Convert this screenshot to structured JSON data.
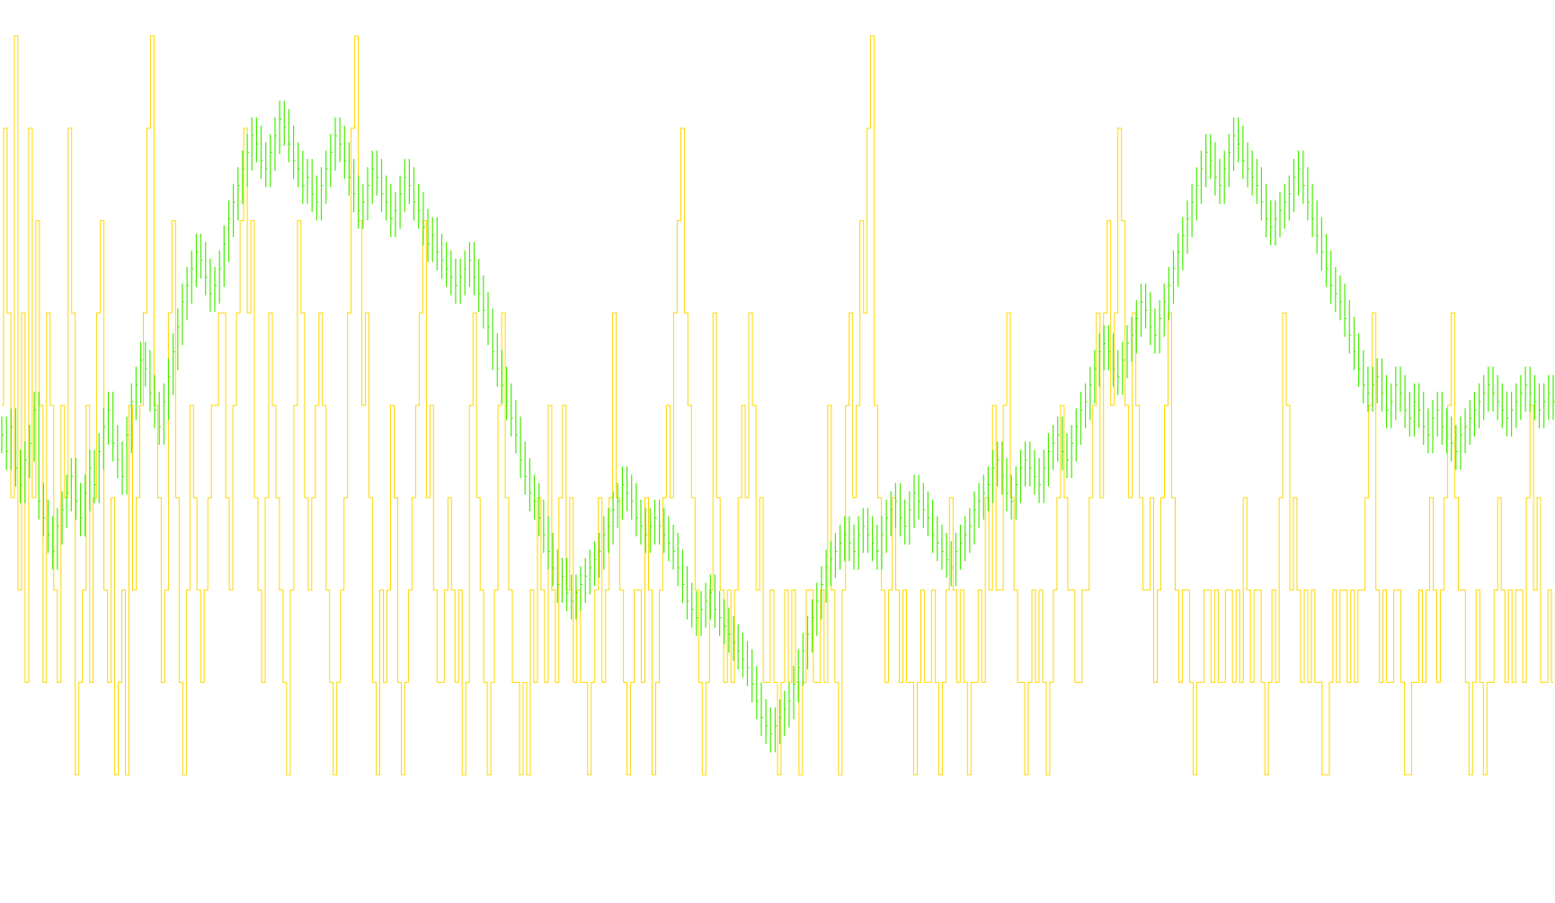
{
  "chart_data": {
    "type": "line",
    "title": "",
    "xlabel": "",
    "ylabel": "",
    "grid": false,
    "legend": "none",
    "background_color": "#ffffff",
    "series": [
      {
        "color": "#FFD700",
        "style": "step-oscillating",
        "ylim": [
          0,
          9
        ],
        "values": [
          5,
          8,
          6,
          4,
          9,
          3,
          6,
          2,
          8,
          4,
          7,
          5,
          2,
          6,
          5,
          3,
          2,
          5,
          4,
          8,
          6,
          1,
          2,
          3,
          5,
          2,
          4,
          6,
          7,
          3,
          2,
          4,
          1,
          2,
          3,
          1,
          5,
          3,
          4,
          5,
          6,
          8,
          9,
          5,
          4,
          2,
          3,
          6,
          7,
          4,
          2,
          1,
          3,
          5,
          4,
          3,
          2,
          3,
          4,
          5,
          5,
          6,
          6,
          4,
          3,
          5,
          6,
          7,
          8,
          6,
          7,
          4,
          3,
          2,
          4,
          6,
          5,
          4,
          3,
          2,
          1,
          3,
          5,
          7,
          6,
          4,
          3,
          4,
          5,
          6,
          5,
          3,
          2,
          1,
          2,
          3,
          4,
          6,
          8,
          9,
          7,
          5,
          6,
          4,
          2,
          1,
          3,
          2,
          3,
          5,
          4,
          2,
          1,
          2,
          3,
          4,
          5,
          6,
          7,
          4,
          5,
          3,
          2,
          2,
          3,
          4,
          3,
          2,
          3,
          1,
          2,
          5,
          6,
          4,
          3,
          2,
          1,
          2,
          3,
          5,
          6,
          4,
          3,
          2,
          2,
          1,
          2,
          1,
          3,
          2,
          4,
          3,
          2,
          5,
          3,
          2,
          4,
          5,
          3,
          4,
          2,
          3,
          2,
          2,
          1,
          2,
          3,
          4,
          2,
          3,
          4,
          6,
          4,
          3,
          2,
          1,
          2,
          3,
          3,
          2,
          4,
          3,
          1,
          2,
          3,
          4,
          5,
          4,
          6,
          7,
          8,
          6,
          5,
          4,
          3,
          2,
          1,
          2,
          3,
          6,
          4,
          3,
          2,
          3,
          2,
          3,
          4,
          5,
          4,
          6,
          5,
          3,
          4,
          2,
          2,
          3,
          2,
          1,
          2,
          3,
          2,
          3,
          2,
          1,
          2,
          3,
          3,
          2,
          2,
          3,
          2,
          5,
          3,
          2,
          1,
          3,
          5,
          6,
          4,
          5,
          7,
          6,
          8,
          9,
          5,
          4,
          3,
          2,
          3,
          4,
          3,
          2,
          3,
          2,
          2,
          1,
          2,
          3,
          2,
          2,
          3,
          2,
          1,
          2,
          3,
          4,
          3,
          2,
          3,
          2,
          1,
          2,
          2,
          3,
          2,
          4,
          3,
          5,
          3,
          3,
          5,
          6,
          4,
          3,
          2,
          2,
          1,
          2,
          3,
          2,
          3,
          2,
          1,
          2,
          3,
          4,
          5,
          4,
          3,
          3,
          2,
          2,
          3,
          3,
          4,
          5,
          6,
          4,
          6,
          7,
          5,
          6,
          8,
          7,
          5,
          4,
          6,
          5,
          4,
          3,
          3,
          4,
          2,
          3,
          4,
          5,
          6,
          4,
          3,
          2,
          3,
          3,
          2,
          1,
          2,
          2,
          3,
          3,
          2,
          3,
          2,
          2,
          3,
          3,
          2,
          3,
          2,
          4,
          3,
          2,
          3,
          3,
          2,
          1,
          2,
          3,
          2,
          4,
          6,
          5,
          3,
          4,
          3,
          2,
          3,
          2,
          3,
          2,
          2,
          1,
          1,
          2,
          3,
          2,
          3,
          3,
          2,
          3,
          2,
          3,
          3,
          4,
          5,
          6,
          3,
          2,
          3,
          2,
          2,
          3,
          3,
          2,
          1,
          1,
          2,
          2,
          3,
          2,
          3,
          4,
          3,
          2,
          3,
          4,
          5,
          6,
          4,
          3,
          3,
          2,
          1,
          2,
          3,
          2,
          1,
          2,
          2,
          3,
          4,
          3,
          2,
          3,
          2,
          3,
          3,
          2,
          4,
          5,
          3,
          4,
          2,
          2,
          3,
          2
        ]
      },
      {
        "color": "#44EE00",
        "style": "ohlc-bars",
        "ylim": [
          0,
          100
        ],
        "values": [
          52,
          50,
          53,
          48,
          46,
          49,
          51,
          55,
          44,
          42,
          40,
          38,
          41,
          43,
          45,
          47,
          44,
          42,
          45,
          48,
          46,
          50,
          53,
          55,
          51,
          49,
          47,
          52,
          56,
          58,
          61,
          60,
          57,
          55,
          53,
          56,
          59,
          62,
          65,
          68,
          70,
          72,
          74,
          73,
          71,
          69,
          70,
          72,
          75,
          78,
          80,
          82,
          84,
          86,
          88,
          87,
          85,
          84,
          86,
          88,
          90,
          89,
          87,
          85,
          84,
          82,
          83,
          81,
          80,
          82,
          84,
          86,
          88,
          87,
          85,
          83,
          81,
          79,
          80,
          82,
          84,
          83,
          81,
          80,
          78,
          79,
          81,
          83,
          82,
          80,
          79,
          77,
          75,
          76,
          74,
          73,
          72,
          71,
          70,
          71,
          72,
          73,
          71,
          69,
          67,
          65,
          62,
          60,
          58,
          56,
          54,
          52,
          49,
          47,
          45,
          44,
          42,
          40,
          38,
          36,
          34,
          35,
          33,
          32,
          33,
          34,
          35,
          36,
          37,
          38,
          40,
          41,
          43,
          44,
          46,
          45,
          44,
          42,
          41,
          40,
          41,
          42,
          41,
          40,
          39,
          38,
          36,
          34,
          32,
          31,
          30,
          31,
          32,
          33,
          31,
          30,
          29,
          28,
          27,
          26,
          25,
          24,
          22,
          20,
          18,
          17,
          16,
          17,
          18,
          19,
          20,
          22,
          24,
          26,
          28,
          30,
          32,
          34,
          36,
          37,
          38,
          39,
          40,
          39,
          38,
          40,
          41,
          40,
          39,
          38,
          40,
          42,
          43,
          44,
          42,
          41,
          43,
          45,
          44,
          43,
          42,
          40,
          39,
          38,
          37,
          36,
          38,
          39,
          40,
          41,
          43,
          44,
          45,
          46,
          48,
          49,
          47,
          45,
          44,
          46,
          48,
          49,
          48,
          47,
          46,
          48,
          50,
          51,
          52,
          50,
          49,
          51,
          53,
          55,
          56,
          58,
          60,
          62,
          63,
          62,
          60,
          59,
          61,
          63,
          64,
          66,
          68,
          67,
          65,
          64,
          66,
          68,
          70,
          72,
          74,
          76,
          78,
          80,
          82,
          84,
          86,
          85,
          83,
          82,
          84,
          86,
          88,
          87,
          85,
          84,
          83,
          82,
          80,
          78,
          77,
          78,
          79,
          80,
          81,
          83,
          84,
          82,
          80,
          78,
          76,
          74,
          72,
          70,
          69,
          68,
          66,
          64,
          62,
          60,
          58,
          57,
          58,
          59,
          57,
          55,
          56,
          58,
          57,
          55,
          54,
          56,
          55,
          53,
          52,
          54,
          55,
          53,
          52,
          51,
          50,
          52,
          53,
          54,
          55,
          56,
          57,
          58,
          57,
          56,
          55,
          54,
          55,
          56,
          57,
          58,
          57,
          56,
          55,
          56,
          57,
          56
        ]
      }
    ]
  }
}
